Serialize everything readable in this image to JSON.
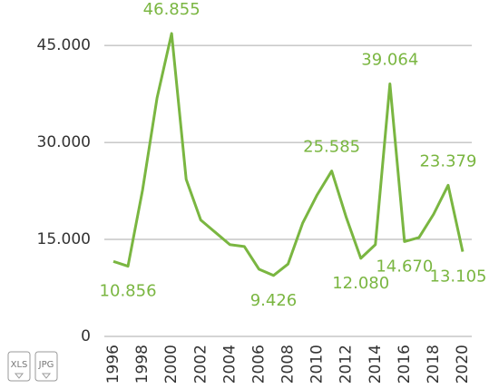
{
  "chart_data": {
    "type": "line",
    "categories": [
      "1996",
      null,
      "1998",
      null,
      "2000",
      null,
      "2002",
      null,
      "2004",
      null,
      "2006",
      null,
      "2008",
      null,
      "2010",
      null,
      "2012",
      null,
      "2014",
      null,
      "2016",
      null,
      "2018",
      null,
      "2020"
    ],
    "values": [
      11600,
      10856,
      22600,
      36900,
      46855,
      24300,
      18000,
      16100,
      14200,
      13900,
      10400,
      9426,
      11200,
      17500,
      21900,
      25585,
      18400,
      12080,
      14200,
      39064,
      14670,
      15300,
      18900,
      23379,
      13105
    ],
    "value_labels": [
      null,
      "10.856",
      null,
      null,
      "46.855",
      null,
      null,
      null,
      null,
      null,
      null,
      "9.426",
      null,
      null,
      null,
      "25.585",
      null,
      "12.080",
      null,
      "39.064",
      "14.670",
      null,
      null,
      "23.379",
      "13.105"
    ],
    "color": "#7ab641",
    "ylim": [
      0,
      50000
    ],
    "yticks": [
      {
        "value": 0,
        "label": "0"
      },
      {
        "value": 15000,
        "label": "15.000"
      },
      {
        "value": 30000,
        "label": "30.000"
      },
      {
        "value": 45000,
        "label": "45.000"
      }
    ],
    "grid": true
  },
  "export_buttons": [
    "XLS",
    "JPG"
  ]
}
